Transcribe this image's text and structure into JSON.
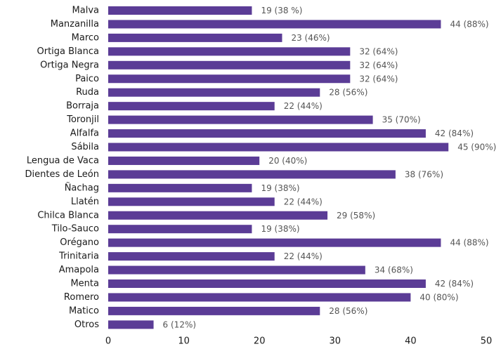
{
  "chart_data": {
    "type": "bar",
    "orientation": "horizontal",
    "categories": [
      "Malva",
      "Manzanilla",
      "Marco",
      "Ortiga Blanca",
      "Ortiga Negra",
      "Paico",
      "Ruda",
      "Borraja",
      "Toronjil",
      "Alfalfa",
      "Sábila",
      "Lengua de Vaca",
      "Dientes de León",
      "Ñachag",
      "Llatén",
      "Chilca Blanca",
      "Tilo-Sauco",
      "Orégano",
      "Trinitaria",
      "Amapola",
      "Menta",
      "Romero",
      "Matico",
      "Otros"
    ],
    "values": [
      19,
      44,
      23,
      32,
      32,
      32,
      28,
      22,
      35,
      42,
      45,
      20,
      38,
      19,
      22,
      29,
      19,
      44,
      22,
      34,
      42,
      40,
      28,
      6
    ],
    "data_labels": [
      "19 (38 %)",
      "44 (88%)",
      "23 (46%)",
      "32 (64%)",
      "32 (64%)",
      "32 (64%)",
      "28 (56%)",
      "22 (44%)",
      "35 (70%)",
      "42 (84%)",
      "45 (90%)",
      "20 (40%)",
      "38 (76%)",
      "19 (38%)",
      "22 (44%)",
      "29 (58%)",
      "19 (38%)",
      "44 (88%)",
      "22 (44%)",
      "34 (68%)",
      "42 (84%)",
      "40 (80%)",
      "28 (56%)",
      "6 (12%)"
    ],
    "x_ticks": [
      "0",
      "10",
      "20",
      "30",
      "40",
      "50"
    ],
    "xlim": [
      0,
      50
    ],
    "title": "",
    "xlabel": "",
    "ylabel": "",
    "grid": false,
    "bar_color": "#5b3c96"
  }
}
